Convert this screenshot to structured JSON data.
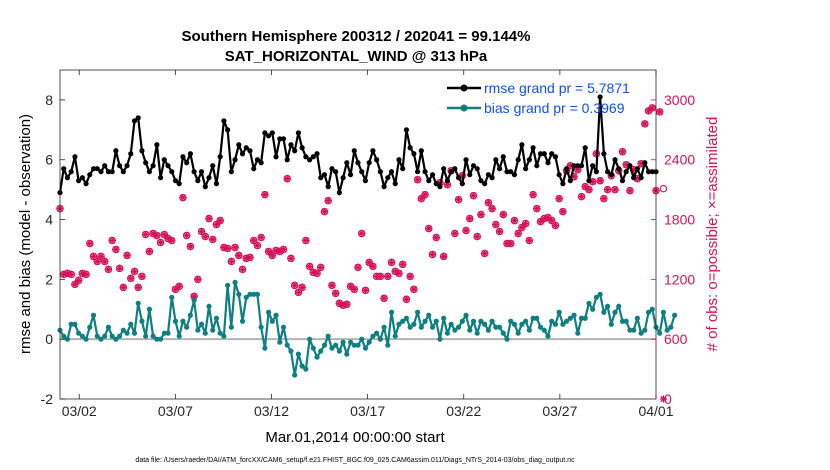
{
  "colors": {
    "rmse": "#000000",
    "bias": "#0f7f7f",
    "obs": "#d6125a",
    "legend_text": "#1050e0",
    "zero_line": "#b3b3b3"
  },
  "chart_data": {
    "type": "line",
    "title": "Southern Hemisphere 200312 / 202041 = 99.144%",
    "subtitle": "SAT_HORIZONTAL_WIND @ 313 hPa",
    "xlabel": "Mar.01,2014 00:00:00 start",
    "ylabel_left": "rmse and bias (model - observation)",
    "ylabel_right": "# of obs: o=possible; ×=assimilated",
    "x_tick_labels": [
      "03/02",
      "03/07",
      "03/12",
      "03/17",
      "03/22",
      "03/27",
      "04/01"
    ],
    "x_tick_days": [
      1,
      6,
      11,
      16,
      21,
      26,
      31
    ],
    "xlim_days": [
      0.0,
      31.0
    ],
    "ylim_left": [
      -2,
      9
    ],
    "y_left_ticks": [
      "-2",
      "0",
      "2",
      "4",
      "6",
      "8"
    ],
    "y_left_tick_values": [
      -2,
      0,
      2,
      4,
      6,
      8
    ],
    "ylim_right": [
      0,
      3300
    ],
    "y_right_ticks": [
      "0",
      "600",
      "1200",
      "1800",
      "2400",
      "3000"
    ],
    "y_right_tick_values": [
      0,
      600,
      1200,
      1800,
      2400,
      3000
    ],
    "legend_placement": "top-right",
    "grid": false,
    "series": [
      {
        "name": "rmse grand pr = 5.7871",
        "axis": "left",
        "marker": "filled circle",
        "values": [
          4.9,
          5.7,
          5.4,
          5.6,
          6.1,
          5.3,
          5.4,
          5.2,
          5.5,
          5.7,
          5.7,
          5.6,
          5.8,
          5.6,
          5.6,
          6.3,
          5.8,
          5.6,
          5.8,
          6.2,
          7.3,
          7.4,
          6.3,
          5.9,
          5.6,
          5.8,
          6.5,
          5.4,
          6.0,
          5.8,
          5.6,
          5.3,
          5.2,
          6.1,
          5.9,
          6.2,
          5.6,
          5.3,
          5.6,
          5.1,
          5.4,
          5.8,
          5.2,
          6.1,
          7.3,
          7.0,
          5.6,
          6.0,
          6.5,
          6.2,
          6.4,
          6.3,
          5.7,
          6.0,
          5.9,
          6.9,
          6.8,
          6.9,
          6.1,
          6.7,
          6.7,
          6.0,
          6.5,
          6.3,
          6.9,
          6.4,
          6.1,
          6.0,
          6.1,
          6.2,
          5.4,
          5.5,
          5.1,
          5.7,
          5.6,
          4.9,
          5.4,
          5.9,
          5.5,
          6.3,
          5.9,
          5.6,
          5.3,
          5.9,
          6.3,
          6.0,
          5.6,
          5.1,
          5.4,
          5.6,
          5.2,
          6.0,
          5.7,
          7.0,
          6.4,
          6.2,
          5.6,
          6.3,
          5.6,
          5.3,
          5.5,
          5.2,
          5.1,
          5.7,
          5.3,
          5.6,
          5.7,
          5.4,
          5.2,
          6.0,
          5.5,
          5.8,
          5.7,
          5.3,
          5.2,
          5.5,
          5.4,
          6.0,
          5.7,
          6.1,
          5.6,
          5.6,
          5.5,
          6.0,
          6.5,
          5.7,
          6.0,
          6.4,
          5.8,
          6.2,
          6.2,
          5.9,
          6.2,
          6.1,
          5.5,
          5.2,
          5.7,
          5.3,
          5.8,
          5.8,
          5.8,
          6.4,
          5.3,
          5.8,
          5.6,
          8.1,
          6.2,
          5.6,
          5.5,
          6.0,
          5.7,
          5.3,
          5.6,
          5.8,
          5.4,
          5.7,
          5.4,
          5.9,
          5.6,
          5.6,
          5.6
        ]
      },
      {
        "name": "bias grand pr = 0.3969",
        "axis": "left",
        "marker": "filled circle",
        "values": [
          0.3,
          0.1,
          0.0,
          0.5,
          0.5,
          0.2,
          0.1,
          0.0,
          0.4,
          0.8,
          0.1,
          0.0,
          0.1,
          0.4,
          0.1,
          0.0,
          0.1,
          0.3,
          0.2,
          0.5,
          0.2,
          1.2,
          0.6,
          0.1,
          1.0,
          0.1,
          0.0,
          0.0,
          0.2,
          0.2,
          1.4,
          0.6,
          0.1,
          0.6,
          0.4,
          0.8,
          1.3,
          0.3,
          0.5,
          0.2,
          1.1,
          0.3,
          0.7,
          0.2,
          0.1,
          1.8,
          0.4,
          1.9,
          1.5,
          0.6,
          1.4,
          1.5,
          1.5,
          1.5,
          0.4,
          -0.3,
          0.9,
          0.6,
          0.8,
          -0.1,
          0.4,
          -0.2,
          -0.4,
          -1.2,
          -0.5,
          -0.9,
          -1.0,
          0.0,
          -0.3,
          -0.6,
          -0.4,
          -0.2,
          0.1,
          -0.3,
          -0.2,
          -0.4,
          -0.1,
          -0.5,
          -0.1,
          -0.2,
          -0.2,
          0.0,
          -0.3,
          -0.1,
          0.1,
          0.2,
          0.0,
          0.4,
          -0.2,
          0.9,
          0.1,
          0.5,
          0.6,
          0.7,
          0.4,
          0.5,
          0.9,
          0.4,
          0.6,
          0.8,
          0.4,
          0.6,
          0.0,
          0.7,
          0.2,
          0.5,
          0.3,
          0.4,
          0.6,
          0.8,
          0.3,
          0.6,
          0.2,
          0.6,
          0.5,
          0.3,
          0.6,
          0.4,
          0.4,
          0.2,
          0.0,
          0.6,
          0.5,
          0.2,
          0.5,
          0.6,
          0.3,
          0.7,
          0.7,
          0.4,
          0.3,
          0.1,
          0.6,
          0.5,
          0.9,
          0.5,
          0.6,
          0.7,
          0.8,
          0.2,
          0.7,
          0.7,
          1.2,
          1.0,
          1.4,
          1.5,
          0.9,
          1.1,
          0.5,
          0.9,
          1.1,
          0.6,
          0.6,
          0.3,
          0.3,
          0.7,
          0.2,
          0.3,
          0.9,
          1.0,
          0.4,
          0.2,
          0.9,
          0.3,
          0.4,
          0.8
        ]
      },
      {
        "name": "obs possible",
        "axis": "right",
        "marker": "open circle",
        "values": [
          1910,
          1250,
          1260,
          1250,
          1150,
          1190,
          1260,
          1250,
          1560,
          1430,
          1380,
          1430,
          1380,
          1300,
          1590,
          1500,
          1310,
          1120,
          1440,
          1210,
          1280,
          1120,
          1230,
          1650,
          1480,
          1660,
          1640,
          1570,
          1650,
          1610,
          1590,
          1100,
          1130,
          2020,
          1640,
          1530,
          1030,
          1200,
          1680,
          1630,
          1810,
          1600,
          1750,
          1790,
          1520,
          1510,
          1380,
          1520,
          1440,
          1300,
          1410,
          1420,
          1590,
          1540,
          1620,
          2050,
          1480,
          1440,
          1490,
          1480,
          1500,
          2210,
          1410,
          1140,
          1070,
          1120,
          1590,
          1330,
          1270,
          1260,
          1320,
          1880,
          1990,
          1140,
          1060,
          960,
          940,
          950,
          1130,
          1100,
          1320,
          1660,
          1090,
          1370,
          1330,
          1230,
          1230,
          1010,
          1230,
          1370,
          1280,
          1260,
          1350,
          1000,
          1230,
          1100,
          2200,
          2010,
          2050,
          1710,
          1450,
          1620,
          2170,
          1430,
          2150,
          2290,
          1660,
          2000,
          2240,
          1690,
          1810,
          2040,
          1630,
          1850,
          1460,
          1970,
          1910,
          1750,
          1680,
          1850,
          1560,
          1560,
          1790,
          1660,
          1720,
          1760,
          1590,
          2050,
          1910,
          1780,
          1810,
          1820,
          1790,
          1740,
          2010,
          1880,
          2290,
          2340,
          2230,
          2300,
          2030,
          2130,
          2100,
          2180,
          2460,
          2190,
          2010,
          2100,
          2240,
          2100,
          2290,
          2480,
          2350,
          2090,
          2300,
          2210,
          2360,
          2760,
          2890,
          2920,
          2090,
          2880,
          2110
        ]
      },
      {
        "name": "obs assimilated",
        "axis": "right",
        "marker": "asterisk",
        "values": [
          1910,
          1250,
          1260,
          1250,
          1150,
          1190,
          1260,
          1250,
          1560,
          1430,
          1380,
          1430,
          1380,
          1300,
          1590,
          1500,
          1310,
          1120,
          1440,
          1210,
          1280,
          1120,
          1230,
          1650,
          1480,
          1660,
          1640,
          1570,
          1650,
          1610,
          1590,
          1100,
          1130,
          2020,
          1640,
          1530,
          1030,
          1200,
          1680,
          1630,
          1810,
          1600,
          1750,
          1790,
          1520,
          1510,
          1380,
          1520,
          1440,
          1300,
          1410,
          1420,
          1590,
          1540,
          1620,
          2050,
          1480,
          1440,
          1490,
          1480,
          1500,
          2210,
          1410,
          1140,
          1070,
          1120,
          1590,
          1330,
          1270,
          1260,
          1320,
          1880,
          1990,
          1140,
          1060,
          960,
          940,
          950,
          1130,
          1100,
          1320,
          1660,
          1090,
          1370,
          1330,
          1230,
          1230,
          1010,
          1230,
          1370,
          1280,
          1260,
          1350,
          1000,
          1230,
          1100,
          2200,
          2010,
          2050,
          1710,
          1450,
          1620,
          2170,
          1430,
          2150,
          2290,
          1660,
          2000,
          2240,
          1690,
          1810,
          2040,
          1630,
          1850,
          1460,
          1970,
          1910,
          1750,
          1680,
          1850,
          1560,
          1560,
          1790,
          1660,
          1720,
          1760,
          1590,
          2050,
          1910,
          1780,
          1810,
          1820,
          1790,
          1740,
          2010,
          1880,
          2290,
          2340,
          2230,
          2300,
          2030,
          2130,
          2100,
          2180,
          2460,
          2190,
          2010,
          2100,
          2240,
          2100,
          2290,
          2480,
          2350,
          2090,
          2300,
          2210,
          2360,
          2760,
          2890,
          2920,
          2090,
          2880,
          0
        ]
      }
    ],
    "footer": "data file: /Users/raeder/DAI/ATM_forcXX/CAM6_setup/f.e21.FHIST_BGC.f09_025.CAM6assim.011/Diags_NTrS_2014-03/obs_diag_output.nc"
  }
}
